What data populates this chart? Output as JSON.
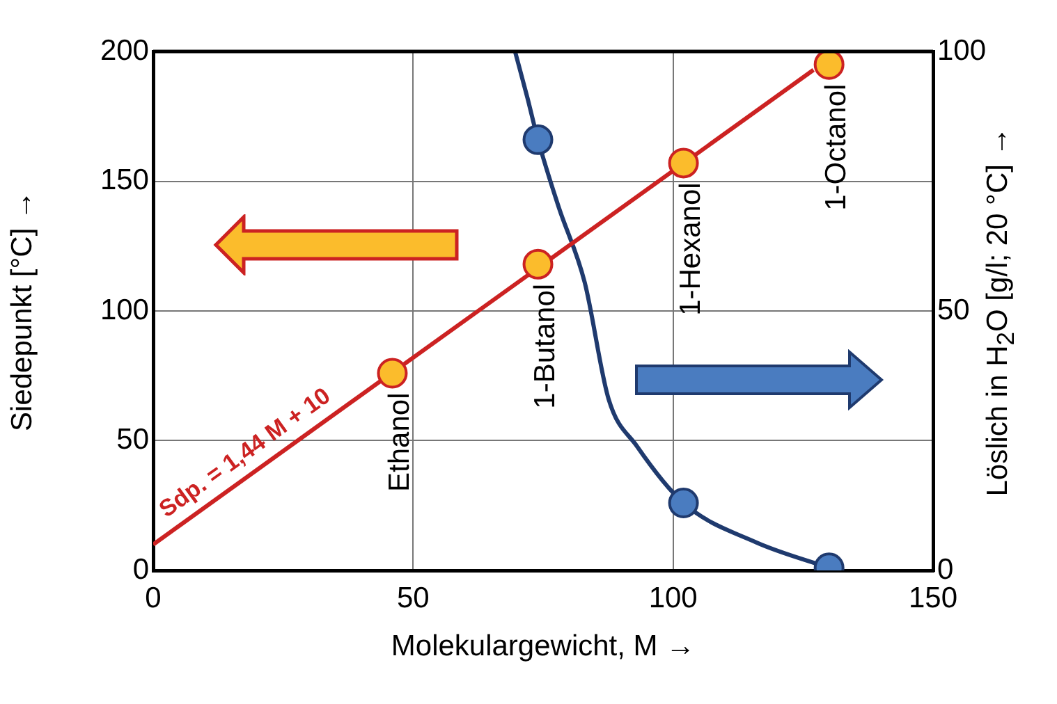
{
  "chart_data": {
    "type": "scatter",
    "xlabel": "Molekulargewicht, M →",
    "ylabel": "Siedepunkt [°C] →",
    "y2label": "Löslich in H$_{2}$O [g/l; 20 °C] →",
    "xlim": [
      0,
      150
    ],
    "xticks": [
      0,
      50,
      100,
      150
    ],
    "ylim": [
      0,
      200
    ],
    "yticks": [
      0,
      50,
      100,
      150,
      200
    ],
    "y2lim": [
      0,
      100
    ],
    "y2ticks": [
      0,
      50,
      100
    ],
    "grid": true,
    "legend": false,
    "series": [
      {
        "type": "line",
        "color": "#cc2222",
        "x": [
          0,
          127
        ],
        "values": [
          10,
          192.9
        ],
        "marker": "none"
      },
      {
        "color": "#fbbc2c",
        "x": [
          46,
          74,
          102,
          130
        ],
        "values": [
          76,
          118,
          157,
          195
        ],
        "marker": "circle"
      },
      {
        "type": "line",
        "axis": "y2",
        "color": "#1f3a6e",
        "x": [
          69.6,
          72,
          74,
          78,
          83,
          87.6,
          93,
          102,
          116,
          130
        ],
        "values": [
          100,
          91,
          83,
          70,
          55.5,
          33,
          24,
          13,
          5.4,
          0.5
        ],
        "marker": "none"
      },
      {
        "axis": "y2",
        "color": "#4a7cc0",
        "x": [
          74,
          102,
          130
        ],
        "values": [
          83,
          13,
          0.5
        ],
        "marker": "circle"
      }
    ],
    "annotations": [
      {
        "text": "Sdp. = 1,44 M + 10",
        "x": 20,
        "y": 38.8
      },
      {
        "text": "Ethanol",
        "x": 46,
        "y": 76
      },
      {
        "text": "1-Butanol",
        "x": 74,
        "y": 118
      },
      {
        "text": "1-Hexanol",
        "x": 102,
        "y": 157
      },
      {
        "text": "1-Octanol",
        "x": 130,
        "y": 195
      }
    ]
  }
}
